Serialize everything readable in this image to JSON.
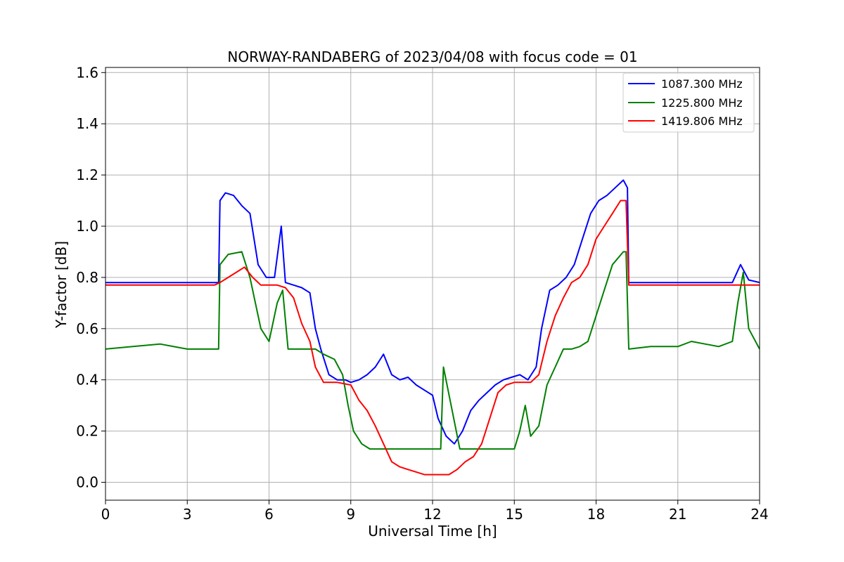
{
  "chart_data": {
    "type": "line",
    "title": "NORWAY-RANDABERG of 2023/04/08 with focus code = 01",
    "xlabel": "Universal Time [h]",
    "ylabel": "Y-factor [dB]",
    "xlim": [
      0,
      24
    ],
    "ylim": [
      -0.07,
      1.62
    ],
    "xticks": [
      0,
      3,
      6,
      9,
      12,
      15,
      18,
      21,
      24
    ],
    "xtick_labels": [
      "0",
      "3",
      "6",
      "9",
      "12",
      "15",
      "18",
      "21",
      "24"
    ],
    "yticks": [
      0.0,
      0.2,
      0.4,
      0.6,
      0.8,
      1.0,
      1.2,
      1.4,
      1.6
    ],
    "ytick_labels": [
      "0.0",
      "0.2",
      "0.4",
      "0.6",
      "0.8",
      "1.0",
      "1.2",
      "1.4",
      "1.6"
    ],
    "grid": true,
    "legend_position": "top-right",
    "series": [
      {
        "name": "1087.300 MHz",
        "color": "#0000ff",
        "x": [
          0,
          1,
          2,
          3,
          4,
          4.15,
          4.2,
          4.4,
          4.7,
          5.0,
          5.3,
          5.6,
          5.9,
          6.2,
          6.45,
          6.6,
          6.9,
          7.2,
          7.5,
          7.7,
          7.9,
          8.2,
          8.5,
          8.8,
          9.0,
          9.3,
          9.6,
          9.9,
          10.2,
          10.5,
          10.8,
          11.1,
          11.4,
          11.7,
          12.0,
          12.2,
          12.5,
          12.8,
          13.1,
          13.4,
          13.7,
          14.0,
          14.3,
          14.6,
          14.9,
          15.2,
          15.5,
          15.8,
          16.0,
          16.3,
          16.6,
          16.9,
          17.2,
          17.5,
          17.8,
          18.1,
          18.4,
          18.7,
          19.0,
          19.15,
          19.2,
          20,
          21,
          22,
          23,
          23.3,
          23.6,
          24
        ],
        "y": [
          0.78,
          0.78,
          0.78,
          0.78,
          0.78,
          0.78,
          1.1,
          1.13,
          1.12,
          1.08,
          1.05,
          0.85,
          0.8,
          0.8,
          1.0,
          0.78,
          0.77,
          0.76,
          0.74,
          0.6,
          0.52,
          0.42,
          0.4,
          0.4,
          0.39,
          0.4,
          0.42,
          0.45,
          0.5,
          0.42,
          0.4,
          0.41,
          0.38,
          0.36,
          0.34,
          0.25,
          0.18,
          0.15,
          0.2,
          0.28,
          0.32,
          0.35,
          0.38,
          0.4,
          0.41,
          0.42,
          0.4,
          0.45,
          0.6,
          0.75,
          0.77,
          0.8,
          0.85,
          0.95,
          1.05,
          1.1,
          1.12,
          1.15,
          1.18,
          1.15,
          0.78,
          0.78,
          0.78,
          0.78,
          0.78,
          0.85,
          0.79,
          0.78
        ]
      },
      {
        "name": "1225.800 MHz",
        "color": "#008000",
        "x": [
          0,
          1,
          2,
          3,
          4,
          4.15,
          4.2,
          4.5,
          5.0,
          5.3,
          5.5,
          5.7,
          6.0,
          6.3,
          6.5,
          6.7,
          7.0,
          7.5,
          7.7,
          8.0,
          8.4,
          8.7,
          8.9,
          9.1,
          9.4,
          9.7,
          10.0,
          11.0,
          12.0,
          12.3,
          12.4,
          13.0,
          14.0,
          15.0,
          15.2,
          15.4,
          15.6,
          15.9,
          16.2,
          16.5,
          16.8,
          17.1,
          17.4,
          17.7,
          18.0,
          18.3,
          18.6,
          19.0,
          19.1,
          19.2,
          20,
          21,
          21.5,
          22,
          22.5,
          23,
          23.2,
          23.4,
          23.6,
          24
        ],
        "y": [
          0.52,
          0.53,
          0.54,
          0.52,
          0.52,
          0.52,
          0.85,
          0.89,
          0.9,
          0.8,
          0.7,
          0.6,
          0.55,
          0.7,
          0.75,
          0.52,
          0.52,
          0.52,
          0.52,
          0.5,
          0.48,
          0.42,
          0.3,
          0.2,
          0.15,
          0.13,
          0.13,
          0.13,
          0.13,
          0.13,
          0.45,
          0.13,
          0.13,
          0.13,
          0.2,
          0.3,
          0.18,
          0.22,
          0.38,
          0.45,
          0.52,
          0.52,
          0.53,
          0.55,
          0.65,
          0.75,
          0.85,
          0.9,
          0.9,
          0.52,
          0.53,
          0.53,
          0.55,
          0.54,
          0.53,
          0.55,
          0.7,
          0.82,
          0.6,
          0.52
        ]
      },
      {
        "name": "1419.806 MHz",
        "color": "#ff0000",
        "x": [
          0,
          1,
          2,
          3,
          4,
          4.2,
          4.5,
          4.8,
          5.1,
          5.4,
          5.7,
          6.0,
          6.3,
          6.6,
          6.9,
          7.2,
          7.5,
          7.7,
          8.0,
          8.5,
          9.0,
          9.3,
          9.6,
          9.9,
          10.2,
          10.5,
          10.8,
          11.1,
          11.4,
          11.7,
          12.0,
          12.3,
          12.6,
          12.9,
          13.2,
          13.5,
          13.8,
          14.1,
          14.4,
          14.7,
          15.0,
          15.3,
          15.6,
          15.9,
          16.2,
          16.5,
          16.8,
          17.1,
          17.4,
          17.7,
          18.0,
          18.3,
          18.6,
          18.9,
          19.1,
          19.2,
          20,
          21,
          22,
          23,
          24
        ],
        "y": [
          0.77,
          0.77,
          0.77,
          0.77,
          0.77,
          0.78,
          0.8,
          0.82,
          0.84,
          0.8,
          0.77,
          0.77,
          0.77,
          0.76,
          0.72,
          0.62,
          0.55,
          0.45,
          0.39,
          0.39,
          0.38,
          0.32,
          0.28,
          0.22,
          0.15,
          0.08,
          0.06,
          0.05,
          0.04,
          0.03,
          0.03,
          0.03,
          0.03,
          0.05,
          0.08,
          0.1,
          0.15,
          0.25,
          0.35,
          0.38,
          0.39,
          0.39,
          0.39,
          0.42,
          0.55,
          0.65,
          0.72,
          0.78,
          0.8,
          0.85,
          0.95,
          1.0,
          1.05,
          1.1,
          1.1,
          0.77,
          0.77,
          0.77,
          0.77,
          0.77,
          0.77
        ]
      }
    ]
  }
}
